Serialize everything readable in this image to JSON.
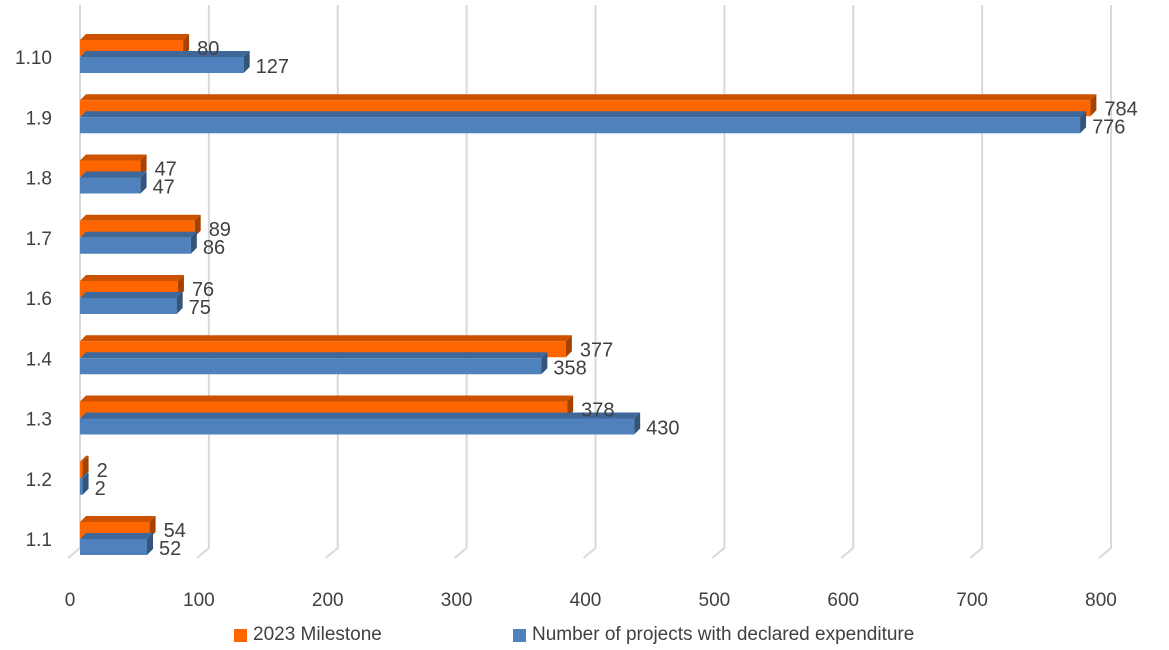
{
  "chart_data": {
    "type": "bar",
    "orientation": "horizontal",
    "style": "3d",
    "categories": [
      "1.1",
      "1.2",
      "1.3",
      "1.4",
      "1.6",
      "1.7",
      "1.8",
      "1.9",
      "1.10"
    ],
    "series": [
      {
        "name": "2023 Milestone",
        "color": "#ff6600",
        "values": [
          54,
          2,
          378,
          377,
          76,
          89,
          47,
          784,
          80
        ]
      },
      {
        "name": "Number of projects with declared expenditure",
        "color": "#4f81bd",
        "values": [
          52,
          2,
          430,
          358,
          75,
          86,
          47,
          776,
          127
        ]
      }
    ],
    "xlim": [
      0,
      800
    ],
    "xticks": [
      0,
      100,
      200,
      300,
      400,
      500,
      600,
      700,
      800
    ],
    "grid": true,
    "legend": "bottom"
  }
}
